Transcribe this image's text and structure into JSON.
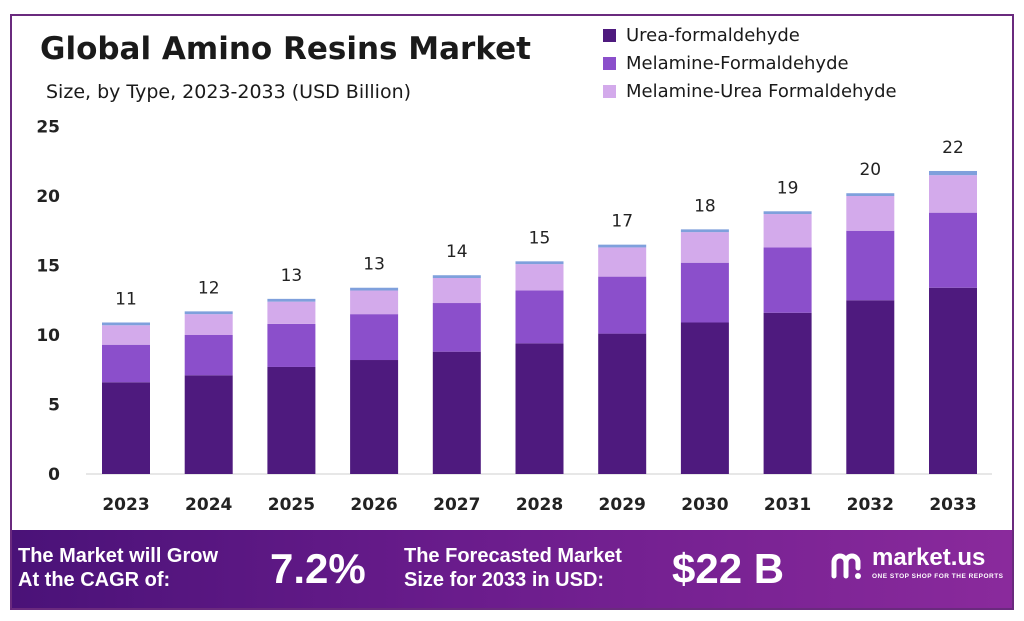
{
  "chart_data": {
    "type": "bar",
    "stacked": true,
    "title": "Global Amino Resins Market",
    "subtitle": "Size, by Type, 2023-2033 (USD Billion)",
    "categories": [
      "2023",
      "2024",
      "2025",
      "2026",
      "2027",
      "2028",
      "2029",
      "2030",
      "2031",
      "2032",
      "2033"
    ],
    "series": [
      {
        "name": "Urea-formaldehyde",
        "color": "#4e1a7e",
        "values": [
          6.6,
          7.1,
          7.7,
          8.2,
          8.8,
          9.4,
          10.1,
          10.9,
          11.6,
          12.5,
          13.4
        ]
      },
      {
        "name": "Melamine-Formaldehyde",
        "color": "#8b4fcb",
        "values": [
          2.7,
          2.9,
          3.1,
          3.3,
          3.5,
          3.8,
          4.1,
          4.3,
          4.7,
          5.0,
          5.4
        ]
      },
      {
        "name": "Melamine-Urea Formaldehyde",
        "color": "#d3aaeb",
        "values": [
          1.4,
          1.5,
          1.6,
          1.7,
          1.8,
          1.9,
          2.1,
          2.2,
          2.4,
          2.5,
          2.7
        ]
      },
      {
        "color": "#7fa0dc",
        "values": [
          0.2,
          0.2,
          0.2,
          0.2,
          0.2,
          0.2,
          0.2,
          0.2,
          0.2,
          0.2,
          0.3
        ]
      }
    ],
    "totals": [
      "11",
      "12",
      "13",
      "13",
      "14",
      "15",
      "17",
      "18",
      "19",
      "20",
      "22"
    ],
    "yticks": [
      "0",
      "5",
      "10",
      "15",
      "20",
      "25"
    ],
    "ylim": [
      0,
      25
    ],
    "grid": false,
    "legend_position": "top-right"
  },
  "banner": {
    "cagr_text": "The Market will Grow\nAt the CAGR of:",
    "cagr_value": "7.2%",
    "forecast_text": "The Forecasted Market\nSize for 2033 in USD:",
    "forecast_value": "$22 B",
    "brand_name": "market.us",
    "brand_tagline": "ONE STOP SHOP FOR THE REPORTS",
    "logo_icon": "market-us-logo-icon"
  }
}
